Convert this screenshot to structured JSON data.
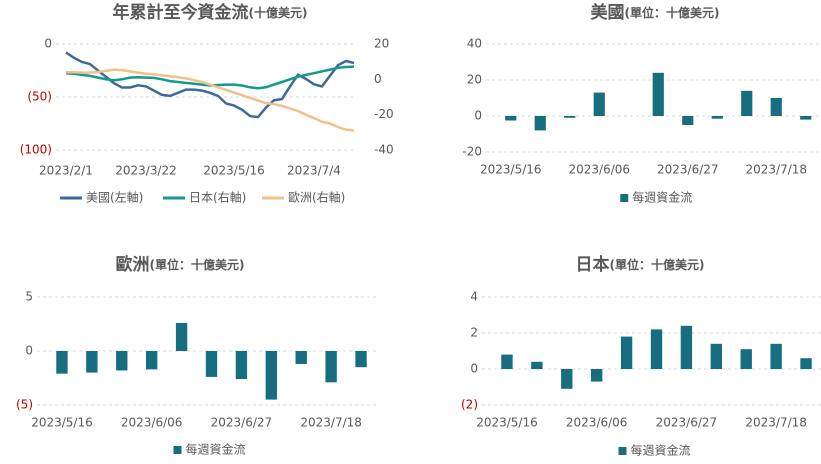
{
  "chart_data": [
    {
      "type": "line",
      "title": "年累計至今資金流",
      "subtitle": "(十億美元)",
      "categories": [
        "2023/2/1",
        null,
        null,
        null,
        null,
        null,
        null,
        null,
        null,
        null,
        "2023/3/22",
        null,
        null,
        null,
        null,
        null,
        null,
        null,
        null,
        null,
        null,
        "2023/5/16",
        null,
        null,
        null,
        null,
        null,
        null,
        null,
        null,
        null,
        "2023/7/4",
        null,
        null,
        null,
        null,
        null
      ],
      "ylim": [
        -100,
        0
      ],
      "yticks": [
        0,
        {
          "value": -50,
          "label": "(50)"
        },
        {
          "value": -100,
          "label": "(100)"
        }
      ],
      "y2lim": [
        -40,
        20
      ],
      "y2ticks": [
        20,
        0,
        -20,
        -40
      ],
      "negative_label_color": "#c00000",
      "grid": true,
      "series": [
        {
          "name": "美國(左軸)",
          "color": "#3e6a9a",
          "values": [
            -8,
            -13,
            -17,
            -19,
            -25,
            -31,
            -37,
            -41,
            -41,
            -39,
            -40,
            -44,
            -48,
            -49,
            -46,
            -43,
            -43,
            -44,
            -46,
            -49,
            -56,
            -58,
            -62,
            -68,
            -69,
            -60,
            -53,
            -52,
            -40,
            -29,
            -33,
            -38,
            -40,
            -30,
            -20,
            -16,
            -18
          ]
        },
        {
          "name": "日本(右軸)",
          "color": "#139a8c",
          "axis": "y2",
          "values": [
            3.5,
            3.2,
            2.5,
            2,
            1,
            0,
            -0.5,
            0,
            1,
            1.2,
            1,
            0.8,
            0,
            -1,
            -1.5,
            -2,
            -2.5,
            -3,
            -3.5,
            -3.2,
            -3,
            -3,
            -3.5,
            -4.5,
            -5,
            -4.5,
            -3,
            -1.5,
            0,
            1.5,
            2.5,
            3.5,
            4.5,
            5.5,
            6.5,
            7,
            7.2
          ]
        },
        {
          "name": "歐洲(右軸)",
          "color": "#f0c28a",
          "axis": "y2",
          "values": [
            4,
            4,
            3.8,
            3.8,
            4.2,
            4.8,
            5.5,
            5.2,
            4.5,
            3.8,
            3.2,
            2.8,
            2.2,
            1.8,
            1.2,
            0.5,
            -0.5,
            -1.5,
            -3,
            -4.5,
            -6,
            -7.5,
            -9,
            -10.5,
            -12,
            -13.5,
            -14,
            -15,
            -16.5,
            -18,
            -20,
            -22,
            -24,
            -25,
            -27,
            -28.5,
            -29
          ]
        }
      ]
    },
    {
      "type": "bar",
      "title": "美國",
      "subtitle": "(單位：十億美元)",
      "categories": [
        "2023/5/16",
        null,
        null,
        "2023/6/06",
        null,
        null,
        "2023/6/27",
        null,
        null,
        "2023/7/18",
        null
      ],
      "ylim": [
        -20,
        40
      ],
      "yticks": [
        40,
        20,
        0,
        -20
      ],
      "grid": true,
      "series": [
        {
          "name": "每週資金流",
          "color": "#176e80",
          "values": [
            -2.5,
            -8,
            -1,
            13,
            0,
            24,
            -5,
            -1.5,
            14,
            10,
            -2
          ]
        }
      ]
    },
    {
      "type": "bar",
      "title": "歐洲",
      "subtitle": "(單位：十億美元)",
      "categories": [
        "2023/5/16",
        null,
        null,
        "2023/6/06",
        null,
        null,
        "2023/6/27",
        null,
        null,
        "2023/7/18",
        null
      ],
      "ylim": [
        -5,
        5
      ],
      "yticks": [
        5,
        0,
        {
          "value": -5,
          "label": "(5)"
        }
      ],
      "negative_label_color": "#c00000",
      "grid": true,
      "series": [
        {
          "name": "每週資金流",
          "color": "#176e80",
          "values": [
            -2.1,
            -2,
            -1.8,
            -1.7,
            2.6,
            -2.4,
            -2.6,
            -4.5,
            -1.2,
            -2.9,
            -1.5
          ]
        }
      ]
    },
    {
      "type": "bar",
      "title": "日本",
      "subtitle": "(單位：十億美元)",
      "categories": [
        "2023/5/16",
        null,
        null,
        "2023/6/06",
        null,
        null,
        "2023/6/27",
        null,
        null,
        "2023/7/18",
        null
      ],
      "ylim": [
        -2,
        4
      ],
      "yticks": [
        4,
        2,
        0,
        {
          "value": -2,
          "label": "(2)"
        }
      ],
      "negative_label_color": "#c00000",
      "grid": true,
      "series": [
        {
          "name": "每週資金流",
          "color": "#176e80",
          "values": [
            0.8,
            0.4,
            -1.1,
            -0.7,
            1.8,
            2.2,
            2.4,
            1.4,
            1.1,
            1.4,
            0.6
          ]
        }
      ]
    }
  ]
}
